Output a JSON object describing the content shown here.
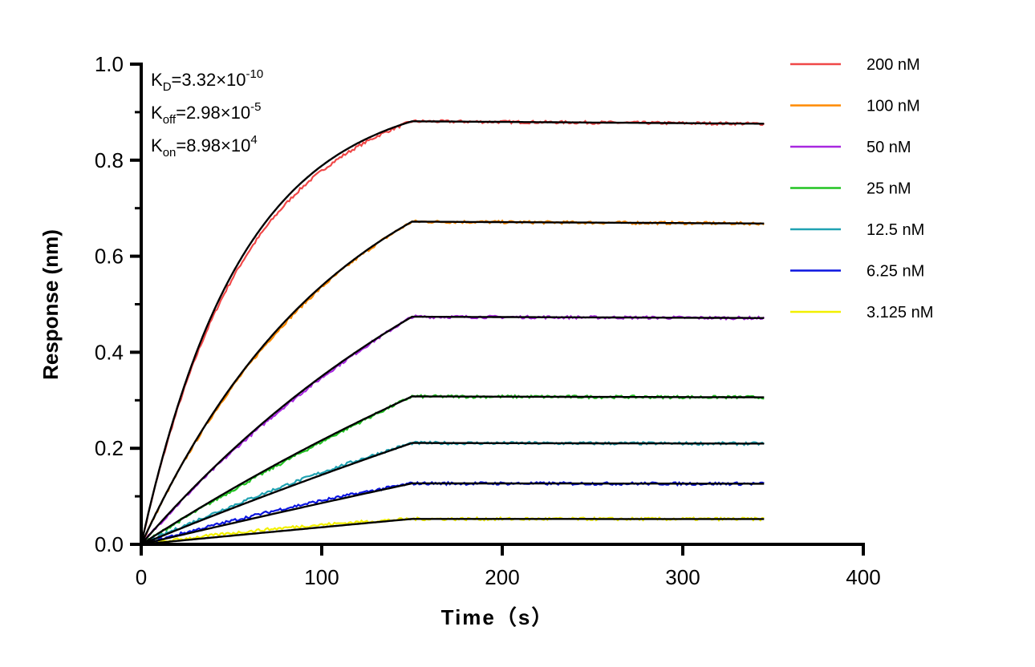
{
  "chart_data": {
    "type": "line",
    "xlabel": "Time（s）",
    "ylabel": "Response (nm)",
    "xlim": [
      0,
      400
    ],
    "ylim": [
      0,
      1.0
    ],
    "xticks": [
      "0",
      "100",
      "200",
      "300",
      "400"
    ],
    "yticks": [
      "0.0",
      "0.2",
      "0.4",
      "0.6",
      "0.8",
      "1.0"
    ],
    "grid": false,
    "legend_position": "right",
    "association_end_s": 150,
    "dissociation_end_s": 345,
    "fit_color": "#000000",
    "annotation": {
      "kd": {
        "base": "K",
        "sub": "D",
        "value": "=3.32×10",
        "exp": "-10"
      },
      "koff": {
        "base": "K",
        "sub": "off",
        "value": "=2.98×10",
        "exp": "-5"
      },
      "kon": {
        "base": "K",
        "sub": "on",
        "value": "=8.98×10",
        "exp": "4"
      }
    },
    "kinetics": {
      "kon": 89800,
      "koff": 2.98e-05
    },
    "series": [
      {
        "name": "200 nM",
        "conc_nM": 200,
        "color": "#f04848",
        "plateau": 0.881
      },
      {
        "name": "100 nM",
        "conc_nM": 100,
        "color": "#ff8a00",
        "plateau": 0.672
      },
      {
        "name": "50 nM",
        "conc_nM": 50,
        "color": "#a828e0",
        "plateau": 0.474
      },
      {
        "name": "25 nM",
        "conc_nM": 25,
        "color": "#22c422",
        "plateau": 0.308
      },
      {
        "name": "12.5 nM",
        "conc_nM": 12.5,
        "color": "#20a2b2",
        "plateau": 0.211
      },
      {
        "name": "6.25 nM",
        "conc_nM": 6.25,
        "color": "#0a14e0",
        "plateau": 0.127
      },
      {
        "name": "3.125 nM",
        "conc_nM": 3.125,
        "color": "#f2f000",
        "plateau": 0.053
      }
    ]
  }
}
